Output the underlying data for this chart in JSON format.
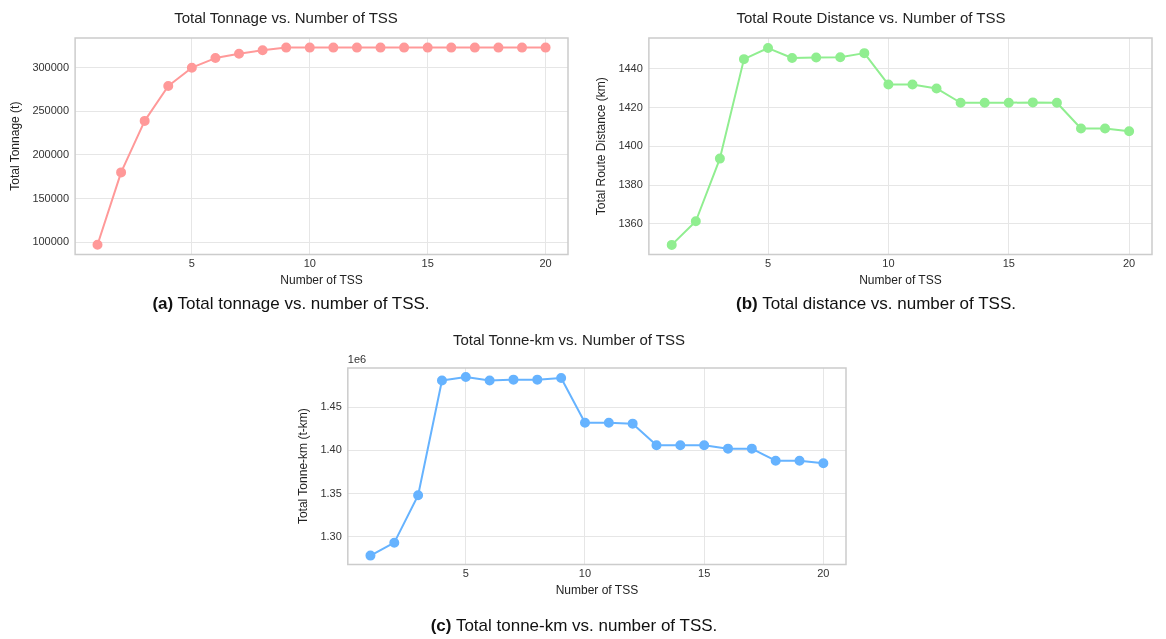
{
  "chart_data": [
    {
      "type": "line",
      "title": "Total Tonnage vs. Number of TSS",
      "xlabel": "Number of TSS",
      "ylabel": "Total Tonnage (t)",
      "x": [
        1,
        2,
        3,
        4,
        5,
        6,
        7,
        8,
        9,
        10,
        11,
        12,
        13,
        14,
        15,
        16,
        17,
        18,
        19,
        20
      ],
      "series": [
        {
          "color": "#ff9999",
          "values": [
            97000,
            180000,
            239000,
            279000,
            300000,
            311000,
            316000,
            320000,
            323000,
            323000,
            323000,
            323000,
            323000,
            323000,
            323000,
            323000,
            323000,
            323000,
            323000,
            323000
          ]
        }
      ],
      "xlim": [
        0.05,
        20.95
      ],
      "xticks": [
        5,
        10,
        15,
        20
      ],
      "ylim": [
        86000,
        334000
      ],
      "yticks": [
        100000,
        150000,
        200000,
        250000,
        300000
      ],
      "grid": true,
      "marker": "circle",
      "line_style": "solid",
      "annotations": [
        "(a) Total tonnage vs. number of TSS."
      ]
    },
    {
      "type": "line",
      "title": "Total Route Distance vs. Number of TSS",
      "xlabel": "Number of TSS",
      "ylabel": "Total Route Distance (km)",
      "x": [
        1,
        2,
        3,
        4,
        5,
        6,
        7,
        8,
        9,
        10,
        11,
        12,
        13,
        14,
        15,
        16,
        17,
        18,
        19,
        20
      ],
      "series": [
        {
          "color": "#90ee90",
          "values": [
            1349.2,
            1361.4,
            1393.7,
            1445,
            1450.7,
            1445.6,
            1445.8,
            1446,
            1448.1,
            1431.9,
            1431.9,
            1429.9,
            1422.5,
            1422.5,
            1422.5,
            1422.7,
            1422.5,
            1409.2,
            1409.2,
            1407.8
          ]
        }
      ],
      "xlim": [
        0.05,
        20.95
      ],
      "xticks": [
        5,
        10,
        15,
        20
      ],
      "ylim": [
        1344.3,
        1455.9
      ],
      "yticks": [
        1360,
        1380,
        1400,
        1420,
        1440
      ],
      "grid": true,
      "marker": "circle",
      "line_style": "solid",
      "annotations": [
        "(b) Total distance vs. number of TSS."
      ]
    },
    {
      "type": "line",
      "title": "Total Tonne-km vs. Number of TSS",
      "xlabel": "Number of TSS",
      "ylabel": "Total Tonne-km (t-km)",
      "x": [
        1,
        2,
        3,
        4,
        5,
        6,
        7,
        8,
        9,
        10,
        11,
        12,
        13,
        14,
        15,
        16,
        17,
        18,
        19,
        20
      ],
      "series": [
        {
          "color": "#66b3ff",
          "values": [
            1.278,
            1.293,
            1.348,
            1.481,
            1.485,
            1.481,
            1.482,
            1.482,
            1.484,
            1.432,
            1.432,
            1.431,
            1.406,
            1.406,
            1.406,
            1.402,
            1.402,
            1.388,
            1.388,
            1.385
          ]
        }
      ],
      "xlim": [
        0.05,
        20.95
      ],
      "xticks": [
        5,
        10,
        15,
        20
      ],
      "ylim": [
        1.2678,
        1.4955
      ],
      "yticks": [
        {
          "value": 1.3,
          "label": "1.30"
        },
        {
          "value": 1.35,
          "label": "1.35"
        },
        {
          "value": 1.4,
          "label": "1.40"
        },
        {
          "value": 1.45,
          "label": "1.45"
        }
      ],
      "grid": true,
      "marker": "circle",
      "line_style": "solid",
      "annotations": [
        "1e6",
        "(c) Total tonne-km vs. number of TSS."
      ]
    }
  ]
}
